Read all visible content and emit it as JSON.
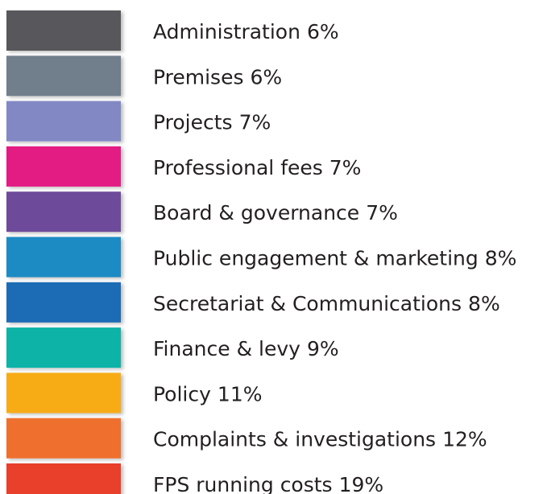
{
  "chart_data": {
    "type": "legend",
    "categories": [
      "Administration",
      "Premises",
      "Projects",
      "Professional fees",
      "Board & governance",
      "Public engagement & marketing",
      "Secretariat & Communications",
      "Finance & levy",
      "Policy",
      "Complaints & investigations",
      "FPS running costs"
    ],
    "values": [
      6,
      6,
      7,
      7,
      7,
      8,
      8,
      9,
      11,
      12,
      19
    ],
    "value_labels": [
      "6%",
      "6%",
      "7%",
      "7%",
      "7%",
      "8%",
      "8%",
      "9%",
      "11%",
      "12%",
      "19%"
    ],
    "colors": [
      "#58595b",
      "#717e8c",
      "#8288c4",
      "#e31b84",
      "#6e4c9a",
      "#1e8bc3",
      "#1c6cb5",
      "#11b3a7",
      "#f7ac19",
      "#ef6f2e",
      "#e8402c"
    ]
  }
}
